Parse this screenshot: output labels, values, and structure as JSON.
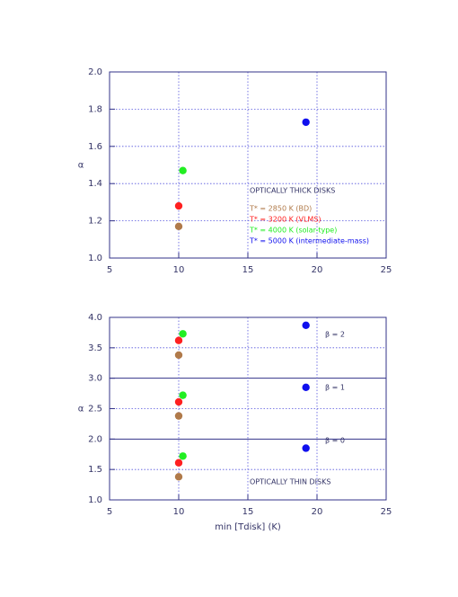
{
  "chart_data": [
    {
      "type": "scatter",
      "ylabel": "α",
      "xlim": [
        5,
        25
      ],
      "xticks": [
        5,
        10,
        15,
        20,
        25
      ],
      "ylim": [
        1,
        2
      ],
      "yticks": [
        {
          "value": 1,
          "label": "1.0"
        },
        1.2,
        1.4,
        1.6,
        1.8,
        {
          "value": 2,
          "label": "2.0"
        }
      ],
      "grid": true,
      "annotations": [
        "OPTICALLY THICK DISKS"
      ],
      "series": [
        {
          "name": "T* = 2850 K (BD)",
          "color": "#b07a4a",
          "x": [
            10
          ],
          "values": [
            1.17
          ]
        },
        {
          "name": "T* = 3200 K (VLMS)",
          "color": "#ff2020",
          "x": [
            10
          ],
          "values": [
            1.28
          ]
        },
        {
          "name": "T* = 4000 K (solar-type)",
          "color": "#22ee22",
          "x": [
            10.3
          ],
          "values": [
            1.47
          ]
        },
        {
          "name": "T* = 5000 K (intermediate-mass)",
          "color": "#1010ee",
          "x": [
            19.2
          ],
          "values": [
            1.73
          ]
        }
      ]
    },
    {
      "type": "scatter",
      "ylabel": "α",
      "xlabel": "min [Tdisk] (K)",
      "xlim": [
        5,
        25
      ],
      "xticks": [
        5,
        10,
        15,
        20,
        25
      ],
      "ylim": [
        1,
        4
      ],
      "yticks": [
        {
          "value": 1,
          "label": "1.0"
        },
        1.5,
        {
          "value": 2,
          "label": "2.0"
        },
        2.5,
        {
          "value": 3,
          "label": "3.0"
        },
        3.5,
        {
          "value": 4,
          "label": "4.0"
        }
      ],
      "grid": true,
      "annotations": [
        "β = 2",
        "β = 1",
        "β = 0",
        "OPTICALLY THIN DISKS"
      ],
      "series": [
        {
          "color": "#b07a4a",
          "x": [
            10,
            10,
            10
          ],
          "values": [
            3.38,
            2.38,
            1.38
          ]
        },
        {
          "color": "#ff2020",
          "x": [
            10,
            10,
            10
          ],
          "values": [
            3.62,
            2.61,
            1.61
          ]
        },
        {
          "color": "#22ee22",
          "x": [
            10.3,
            10.3,
            10.3
          ],
          "values": [
            3.73,
            2.72,
            1.72
          ]
        },
        {
          "color": "#1010ee",
          "x": [
            19.2,
            19.2,
            19.2
          ],
          "values": [
            3.87,
            2.85,
            1.85
          ]
        }
      ]
    }
  ]
}
